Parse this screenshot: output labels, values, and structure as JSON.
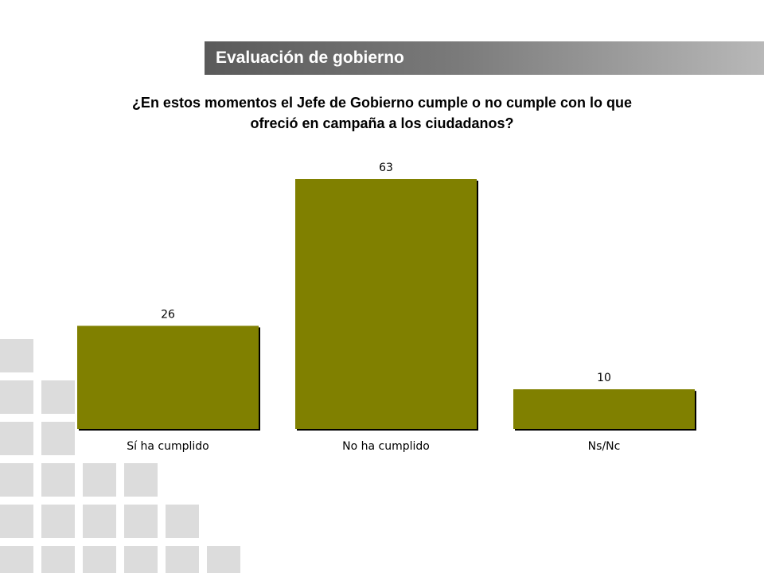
{
  "header": {
    "title": "Evaluación de gobierno"
  },
  "question": {
    "line1": "¿En estos momentos el Jefe de Gobierno cumple o no cumple con lo que",
    "line2": "ofreció en campaña a los ciudadanos?"
  },
  "chart_data": {
    "type": "bar",
    "title": "",
    "xlabel": "",
    "ylabel": "",
    "categories": [
      "Sí ha cumplido",
      "No ha cumplido",
      "Ns/Nc"
    ],
    "values": [
      26,
      63,
      10
    ],
    "data_labels": [
      "26",
      "63",
      "10"
    ],
    "ylim": [
      0,
      63
    ],
    "grid": false,
    "legend": "none",
    "bar_color": "#808000",
    "bar_shadow_color": "#000000"
  },
  "decoration": {
    "square_color": "#dcdcdc"
  }
}
